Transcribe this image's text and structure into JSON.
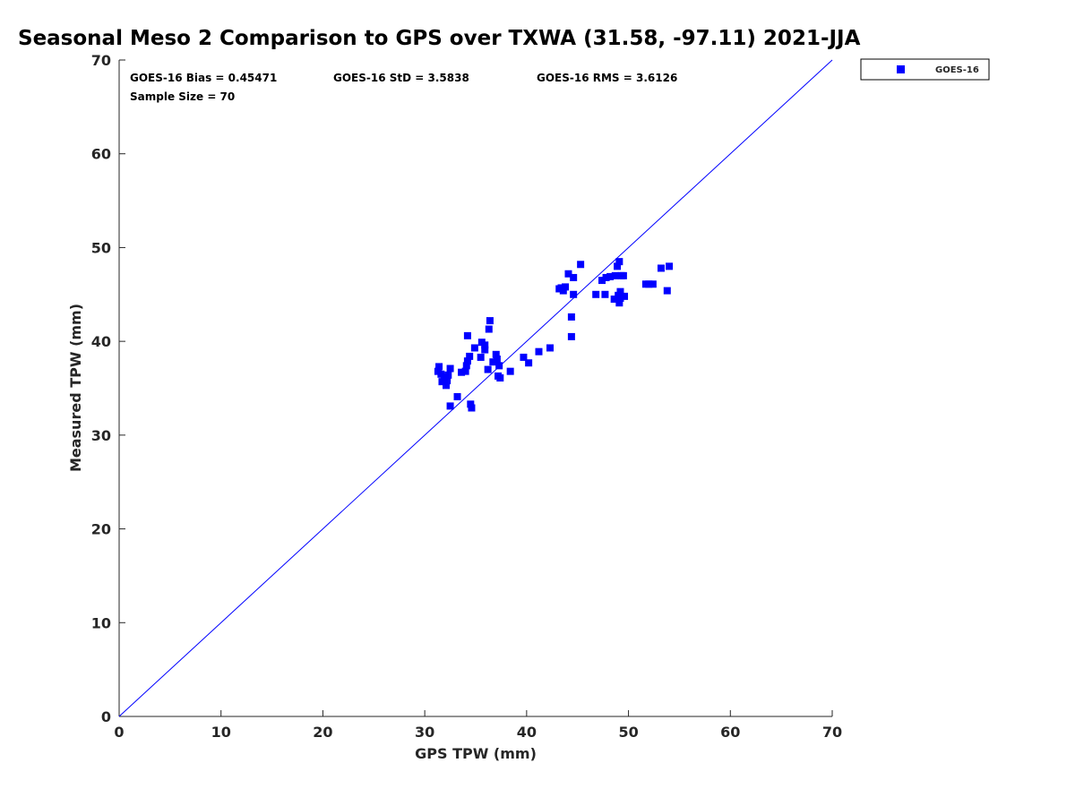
{
  "chart_data": {
    "type": "scatter",
    "title": "Seasonal Meso 2 Comparison to GPS over TXWA (31.58, -97.11) 2021-JJA",
    "xlabel": "GPS TPW (mm)",
    "ylabel": "Measured TPW (mm)",
    "xlim": [
      0,
      70
    ],
    "ylim": [
      0,
      70
    ],
    "xticks": [
      "0",
      "10",
      "20",
      "30",
      "40",
      "50",
      "60",
      "70"
    ],
    "yticks": [
      "0",
      "10",
      "20",
      "30",
      "40",
      "50",
      "60",
      "70"
    ],
    "grid": false,
    "legend_position": "outside-top-right",
    "reference_line": {
      "x": [
        0,
        70
      ],
      "y": [
        0,
        70
      ],
      "color": "#0000ff"
    },
    "stats": {
      "bias": "GOES-16 Bias = 0.45471",
      "std": "GOES-16 StD = 3.5838",
      "rms": "GOES-16 RMS = 3.6126",
      "sample_size": "Sample Size = 70"
    },
    "series": [
      {
        "name": "GOES-16",
        "color": "#0000ff",
        "marker": "square",
        "points": [
          [
            31.3,
            36.8
          ],
          [
            31.4,
            37.3
          ],
          [
            31.6,
            36.5
          ],
          [
            31.7,
            35.7
          ],
          [
            31.9,
            36.2
          ],
          [
            32.1,
            35.3
          ],
          [
            32.2,
            35.8
          ],
          [
            32.3,
            36.4
          ],
          [
            32.5,
            37.1
          ],
          [
            32.5,
            33.1
          ],
          [
            33.2,
            34.1
          ],
          [
            33.6,
            36.7
          ],
          [
            34.0,
            36.8
          ],
          [
            34.1,
            37.4
          ],
          [
            34.2,
            37.9
          ],
          [
            34.2,
            40.6
          ],
          [
            34.4,
            38.4
          ],
          [
            34.5,
            33.3
          ],
          [
            34.6,
            32.9
          ],
          [
            34.9,
            39.3
          ],
          [
            35.5,
            38.3
          ],
          [
            35.6,
            39.9
          ],
          [
            35.9,
            39.6
          ],
          [
            35.9,
            39.1
          ],
          [
            36.2,
            37.0
          ],
          [
            36.3,
            41.3
          ],
          [
            36.4,
            42.2
          ],
          [
            36.7,
            37.8
          ],
          [
            37.0,
            38.6
          ],
          [
            37.1,
            38.1
          ],
          [
            37.2,
            36.3
          ],
          [
            37.3,
            37.4
          ],
          [
            37.4,
            36.1
          ],
          [
            38.4,
            36.8
          ],
          [
            39.7,
            38.3
          ],
          [
            40.2,
            37.7
          ],
          [
            41.2,
            38.9
          ],
          [
            42.3,
            39.3
          ],
          [
            43.2,
            45.6
          ],
          [
            43.6,
            45.4
          ],
          [
            43.8,
            45.8
          ],
          [
            44.1,
            47.2
          ],
          [
            44.4,
            40.5
          ],
          [
            44.4,
            42.6
          ],
          [
            44.6,
            45.0
          ],
          [
            44.6,
            46.8
          ],
          [
            45.3,
            48.2
          ],
          [
            46.8,
            45.0
          ],
          [
            47.4,
            46.5
          ],
          [
            47.7,
            45.0
          ],
          [
            47.8,
            46.8
          ],
          [
            48.2,
            46.9
          ],
          [
            48.6,
            44.5
          ],
          [
            48.7,
            47.0
          ],
          [
            48.9,
            48.0
          ],
          [
            49.1,
            48.5
          ],
          [
            49.1,
            44.1
          ],
          [
            49.2,
            44.6
          ],
          [
            49.2,
            45.3
          ],
          [
            49.3,
            47.0
          ],
          [
            49.5,
            47.0
          ],
          [
            49.6,
            44.8
          ],
          [
            51.7,
            46.1
          ],
          [
            52.0,
            46.1
          ],
          [
            52.4,
            46.1
          ],
          [
            53.2,
            47.8
          ],
          [
            53.8,
            45.4
          ],
          [
            54.0,
            48.0
          ],
          [
            49.0,
            44.9
          ],
          [
            43.4,
            45.7
          ]
        ]
      }
    ]
  }
}
